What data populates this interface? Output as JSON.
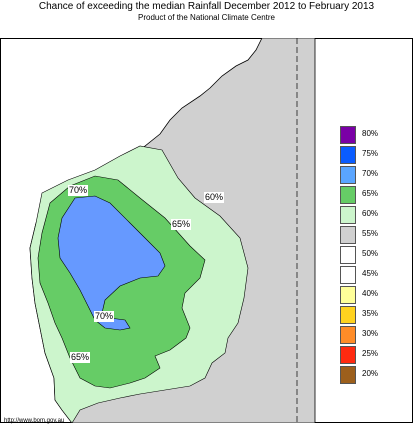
{
  "header": {
    "title": "Chance of exceeding the median Rainfall December 2012 to February 2013",
    "subtitle": "Product of the National Climate Centre"
  },
  "map": {
    "contour_labels": [
      "70%",
      "65%",
      "60%",
      "70%",
      "65%"
    ],
    "colors": {
      "background": "#ffffff",
      "sea": "#ffffff",
      "gray_55": "#d0d0d0",
      "light_green_60": "#ccf5cc",
      "green_65": "#66cc66",
      "blue_75": "#6699ff",
      "border": "#000000"
    }
  },
  "legend": {
    "items": [
      {
        "label": "80%",
        "color": "#7a00a6"
      },
      {
        "label": "75%",
        "color": "#0a5cff"
      },
      {
        "label": "70%",
        "color": "#5aa5ff"
      },
      {
        "label": "65%",
        "color": "#66cc66"
      },
      {
        "label": "60%",
        "color": "#ccf5cc"
      },
      {
        "label": "55%",
        "color": "#d0d0d0"
      },
      {
        "label": "50%",
        "color": "#ffffff"
      },
      {
        "label": "45%",
        "color": "#ffffff"
      },
      {
        "label": "40%",
        "color": "#ffff99"
      },
      {
        "label": "35%",
        "color": "#ffd21f"
      },
      {
        "label": "30%",
        "color": "#ff8c28"
      },
      {
        "label": "25%",
        "color": "#ff2a10"
      },
      {
        "label": "20%",
        "color": "#9c5f1c"
      }
    ]
  },
  "footer": {
    "url": "http://www.bom.gov.au"
  }
}
